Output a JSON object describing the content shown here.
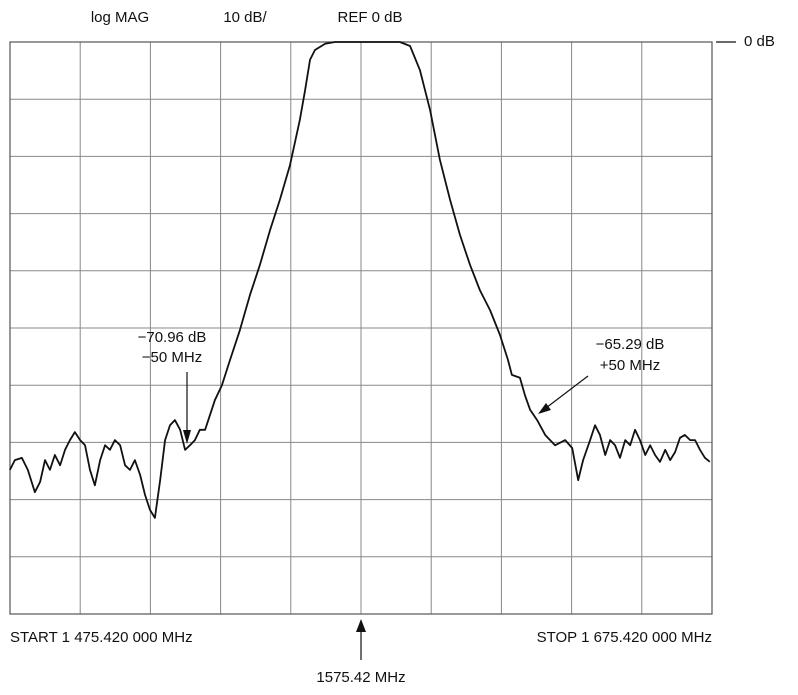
{
  "chart_data": {
    "type": "line",
    "labels": {
      "mode": "log MAG",
      "scale": "10 dB/",
      "ref": "REF 0 dB",
      "ref_marker": "0 dB",
      "start": "START  1 475.420 000 MHz",
      "stop": "STOP  1 675.420 000 MHz",
      "center": "1575.42 MHz"
    },
    "annotations": [
      {
        "lines": [
          "−70.96 dB",
          "−50 MHz"
        ]
      },
      {
        "lines": [
          "−65.29 dB",
          "+50 MHz"
        ]
      }
    ],
    "xlim": [
      1475.42,
      1675.42
    ],
    "ylim": [
      -100,
      0
    ],
    "xticks": [
      1475.42,
      1495.42,
      1515.42,
      1535.42,
      1555.42,
      1575.42,
      1595.42,
      1615.42,
      1635.42,
      1655.42,
      1675.42
    ],
    "yticks": [
      0,
      -10,
      -20,
      -30,
      -40,
      -50,
      -60,
      -70,
      -80,
      -90,
      -100
    ],
    "grid": true,
    "x": [
      1475.4,
      1476.8,
      1478.8,
      1480.5,
      1482.5,
      1484.0,
      1485.4,
      1486.8,
      1488.2,
      1489.7,
      1491.1,
      1492.5,
      1493.9,
      1495.4,
      1496.8,
      1498.2,
      1499.6,
      1501.1,
      1502.5,
      1503.9,
      1505.3,
      1506.8,
      1508.2,
      1509.6,
      1511.0,
      1512.5,
      1513.9,
      1515.3,
      1516.7,
      1518.2,
      1519.6,
      1521.0,
      1522.4,
      1523.9,
      1525.3,
      1526.7,
      1528.1,
      1529.5,
      1531.0,
      1532.4,
      1533.8,
      1535.8,
      1538.1,
      1540.9,
      1543.8,
      1546.6,
      1549.5,
      1552.3,
      1555.2,
      1558.0,
      1559.5,
      1560.9,
      1562.3,
      1565.2,
      1568.0,
      1586.5,
      1589.4,
      1592.2,
      1595.1,
      1597.9,
      1600.8,
      1603.6,
      1606.5,
      1609.3,
      1612.2,
      1615.0,
      1617.3,
      1618.4,
      1620.7,
      1622.1,
      1623.6,
      1625.6,
      1627.9,
      1630.7,
      1633.6,
      1635.6,
      1637.3,
      1638.7,
      1640.7,
      1642.1,
      1643.5,
      1645.0,
      1646.4,
      1647.8,
      1649.2,
      1650.7,
      1652.1,
      1653.5,
      1654.9,
      1656.4,
      1657.8,
      1659.2,
      1660.6,
      1662.1,
      1663.5,
      1664.9,
      1666.3,
      1667.7,
      1669.2,
      1670.6,
      1672.0,
      1673.4,
      1674.8
    ],
    "series": [
      {
        "color": "#111111",
        "values": [
          -74.8,
          -73.1,
          -72.7,
          -74.8,
          -78.7,
          -76.9,
          -73.1,
          -74.8,
          -72.2,
          -74.0,
          -71.3,
          -69.6,
          -68.2,
          -69.6,
          -70.5,
          -74.8,
          -77.5,
          -73.1,
          -70.5,
          -71.3,
          -69.6,
          -70.5,
          -74.0,
          -74.8,
          -73.1,
          -75.7,
          -79.2,
          -81.8,
          -83.2,
          -76.6,
          -69.6,
          -67.0,
          -66.1,
          -67.8,
          -71.3,
          -70.5,
          -69.6,
          -67.8,
          -67.8,
          -65.2,
          -62.6,
          -60.0,
          -55.6,
          -50.4,
          -44.2,
          -39.0,
          -32.9,
          -27.6,
          -21.5,
          -13.6,
          -8.4,
          -3.1,
          -1.4,
          -0.3,
          0,
          0,
          -0.7,
          -4.9,
          -11.9,
          -20.6,
          -27.6,
          -33.7,
          -39.0,
          -43.4,
          -46.9,
          -51.2,
          -55.6,
          -58.2,
          -58.7,
          -61.7,
          -64.3,
          -66.1,
          -68.7,
          -70.5,
          -69.6,
          -71.0,
          -76.6,
          -73.1,
          -69.6,
          -67.0,
          -68.7,
          -72.2,
          -69.6,
          -70.5,
          -72.7,
          -69.6,
          -70.5,
          -67.8,
          -69.6,
          -72.2,
          -70.5,
          -72.2,
          -73.4,
          -71.3,
          -73.1,
          -71.7,
          -69.2,
          -68.7,
          -69.6,
          -69.6,
          -71.3,
          -72.7,
          -73.4
        ]
      }
    ]
  }
}
